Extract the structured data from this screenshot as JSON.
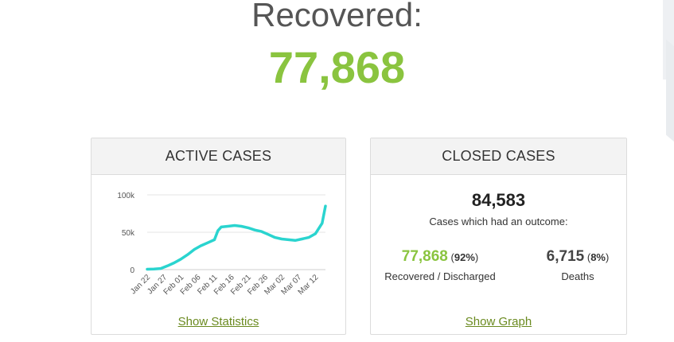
{
  "hero": {
    "label": "Recovered:",
    "value": "77,868",
    "value_color": "#8ac43f"
  },
  "active": {
    "title": "ACTIVE CASES",
    "link_label": "Show Statistics"
  },
  "closed": {
    "title": "CLOSED CASES",
    "total": "84,583",
    "description": "Cases which had an outcome:",
    "recovered_value": "77,868",
    "recovered_pct_open": "(",
    "recovered_pct": "92%",
    "recovered_pct_close": ")",
    "recovered_label": "Recovered / Discharged",
    "deaths_value": "6,715",
    "deaths_pct_open": "(",
    "deaths_pct": "8%",
    "deaths_pct_close": ")",
    "deaths_label": "Deaths",
    "link_label": "Show Graph"
  },
  "chart_data": {
    "type": "line",
    "title": "",
    "xlabel": "",
    "ylabel": "",
    "ylim": [
      0,
      100000
    ],
    "yticks": [
      0,
      50000,
      100000
    ],
    "ytick_labels": [
      "0",
      "50k",
      "100k"
    ],
    "xtick_labels": [
      "Jan 22",
      "Jan 27",
      "Feb 01",
      "Feb 06",
      "Feb 11",
      "Feb 16",
      "Feb 21",
      "Feb 26",
      "Mar 02",
      "Mar 07",
      "Mar 12"
    ],
    "grid": true,
    "line_color": "#2ad4cf",
    "series": [
      {
        "x": [
          "Jan 22",
          "Jan 24",
          "Jan 26",
          "Jan 28",
          "Jan 30",
          "Feb 01",
          "Feb 03",
          "Feb 05",
          "Feb 07",
          "Feb 09",
          "Feb 11",
          "Feb 12",
          "Feb 13",
          "Feb 15",
          "Feb 17",
          "Feb 19",
          "Feb 21",
          "Feb 23",
          "Feb 25",
          "Feb 27",
          "Feb 29",
          "Mar 02",
          "Mar 04",
          "Mar 06",
          "Mar 08",
          "Mar 10",
          "Mar 12",
          "Mar 14",
          "Mar 15"
        ],
        "values": [
          500,
          800,
          1500,
          5000,
          9000,
          14000,
          20000,
          27000,
          32000,
          36000,
          40000,
          52000,
          57000,
          58000,
          59000,
          58000,
          56000,
          53000,
          51000,
          47000,
          43000,
          41000,
          40000,
          39000,
          41000,
          43000,
          48000,
          62000,
          85000
        ]
      }
    ]
  }
}
